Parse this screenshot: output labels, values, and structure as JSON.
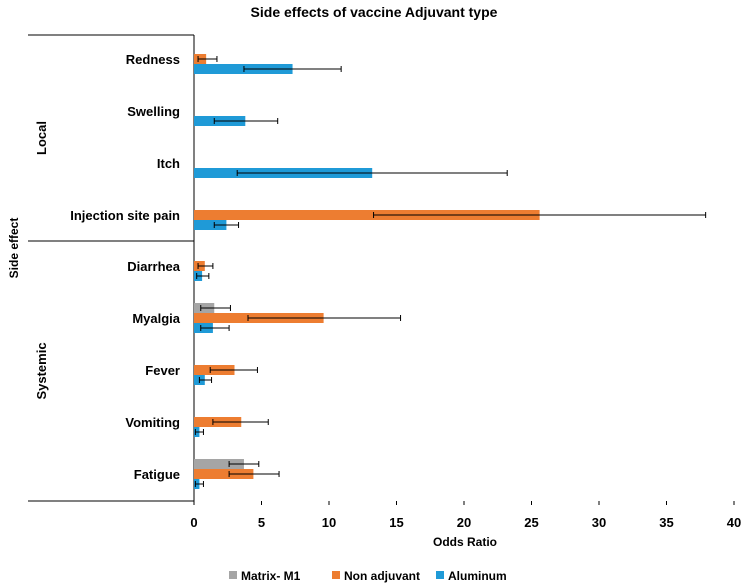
{
  "chart_data": {
    "type": "bar",
    "orientation": "horizontal",
    "title": "Side effects of vaccine Adjuvant type",
    "xlabel": "Odds Ratio",
    "ylabel": "Side effect",
    "xlim": [
      0,
      40
    ],
    "xticks": [
      0,
      5,
      10,
      15,
      20,
      25,
      30,
      35,
      40
    ],
    "legend_position": "bottom",
    "groups": [
      {
        "name": "Local",
        "categories": [
          "Redness",
          "Swelling",
          "Itch",
          "Injection site pain"
        ]
      },
      {
        "name": "Systemic",
        "categories": [
          "Diarrhea",
          "Myalgia",
          "Fever",
          "Vomiting",
          "Fatigue"
        ]
      }
    ],
    "categories": [
      "Redness",
      "Swelling",
      "Itch",
      "Injection site pain",
      "Diarrhea",
      "Myalgia",
      "Fever",
      "Vomiting",
      "Fatigue"
    ],
    "series": [
      {
        "name": "Matrix- M1",
        "color": "#a5a5a5",
        "values": [
          null,
          null,
          null,
          null,
          null,
          1.5,
          null,
          null,
          3.7
        ],
        "err_low": [
          null,
          null,
          null,
          null,
          null,
          0.5,
          null,
          null,
          2.6
        ],
        "err_high": [
          null,
          null,
          null,
          null,
          null,
          2.7,
          null,
          null,
          4.8
        ]
      },
      {
        "name": "Non adjuvant",
        "color": "#ed7d31",
        "values": [
          0.9,
          null,
          null,
          25.6,
          0.8,
          9.6,
          3.0,
          3.5,
          4.4
        ],
        "err_low": [
          0.3,
          null,
          null,
          13.3,
          0.3,
          4.0,
          1.2,
          1.4,
          2.6
        ],
        "err_high": [
          1.7,
          null,
          null,
          37.9,
          1.4,
          15.3,
          4.7,
          5.5,
          6.3
        ]
      },
      {
        "name": "Aluminum",
        "color": "#1f9ad7",
        "values": [
          7.3,
          3.8,
          13.2,
          2.4,
          0.6,
          1.4,
          0.8,
          0.4,
          0.4
        ],
        "err_low": [
          3.7,
          1.5,
          3.2,
          1.5,
          0.2,
          0.5,
          0.4,
          0.1,
          0.1
        ],
        "err_high": [
          10.9,
          6.2,
          23.2,
          3.3,
          1.1,
          2.6,
          1.3,
          0.7,
          0.7
        ]
      }
    ]
  }
}
